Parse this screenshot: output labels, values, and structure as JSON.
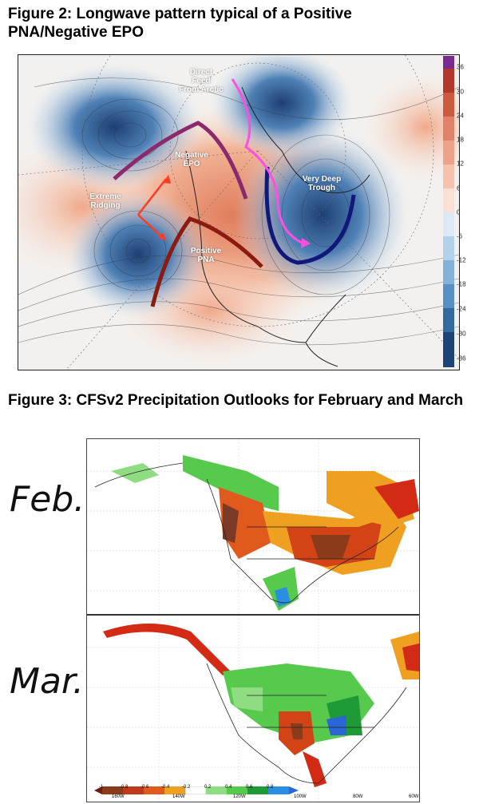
{
  "figure2": {
    "title": "Figure 2: Longwave pattern typical of a Positive PNA/Negative EPO",
    "labels": {
      "direct_feed": "Direct\nFeed\nFrom Arctic",
      "negative_epo": "Negative\nEPO",
      "extreme_ridging": "Extreme\nRidging",
      "positive_pna": "Positive\nPNA",
      "very_deep_trough": "Very Deep\nTrough"
    },
    "colorbar": {
      "ticks": [
        "36",
        "30",
        "24",
        "18",
        "12",
        "6",
        "0",
        "-6",
        "-12",
        "-18",
        "-24",
        "-30",
        "-36"
      ]
    }
  },
  "figure3": {
    "title": "Figure 3: CFSv2 Precipitation Outlooks for February and March",
    "panels": [
      {
        "label": "Feb."
      },
      {
        "label": "Mar."
      }
    ],
    "legend_ticks": [
      "-1",
      "-0.8",
      "-0.6",
      "-0.4",
      "-0.2",
      "0.2",
      "0.4",
      "0.6",
      "0.8"
    ],
    "lon_ticks": [
      "160W",
      "140W",
      "120W",
      "100W",
      "80W",
      "60W"
    ]
  }
}
